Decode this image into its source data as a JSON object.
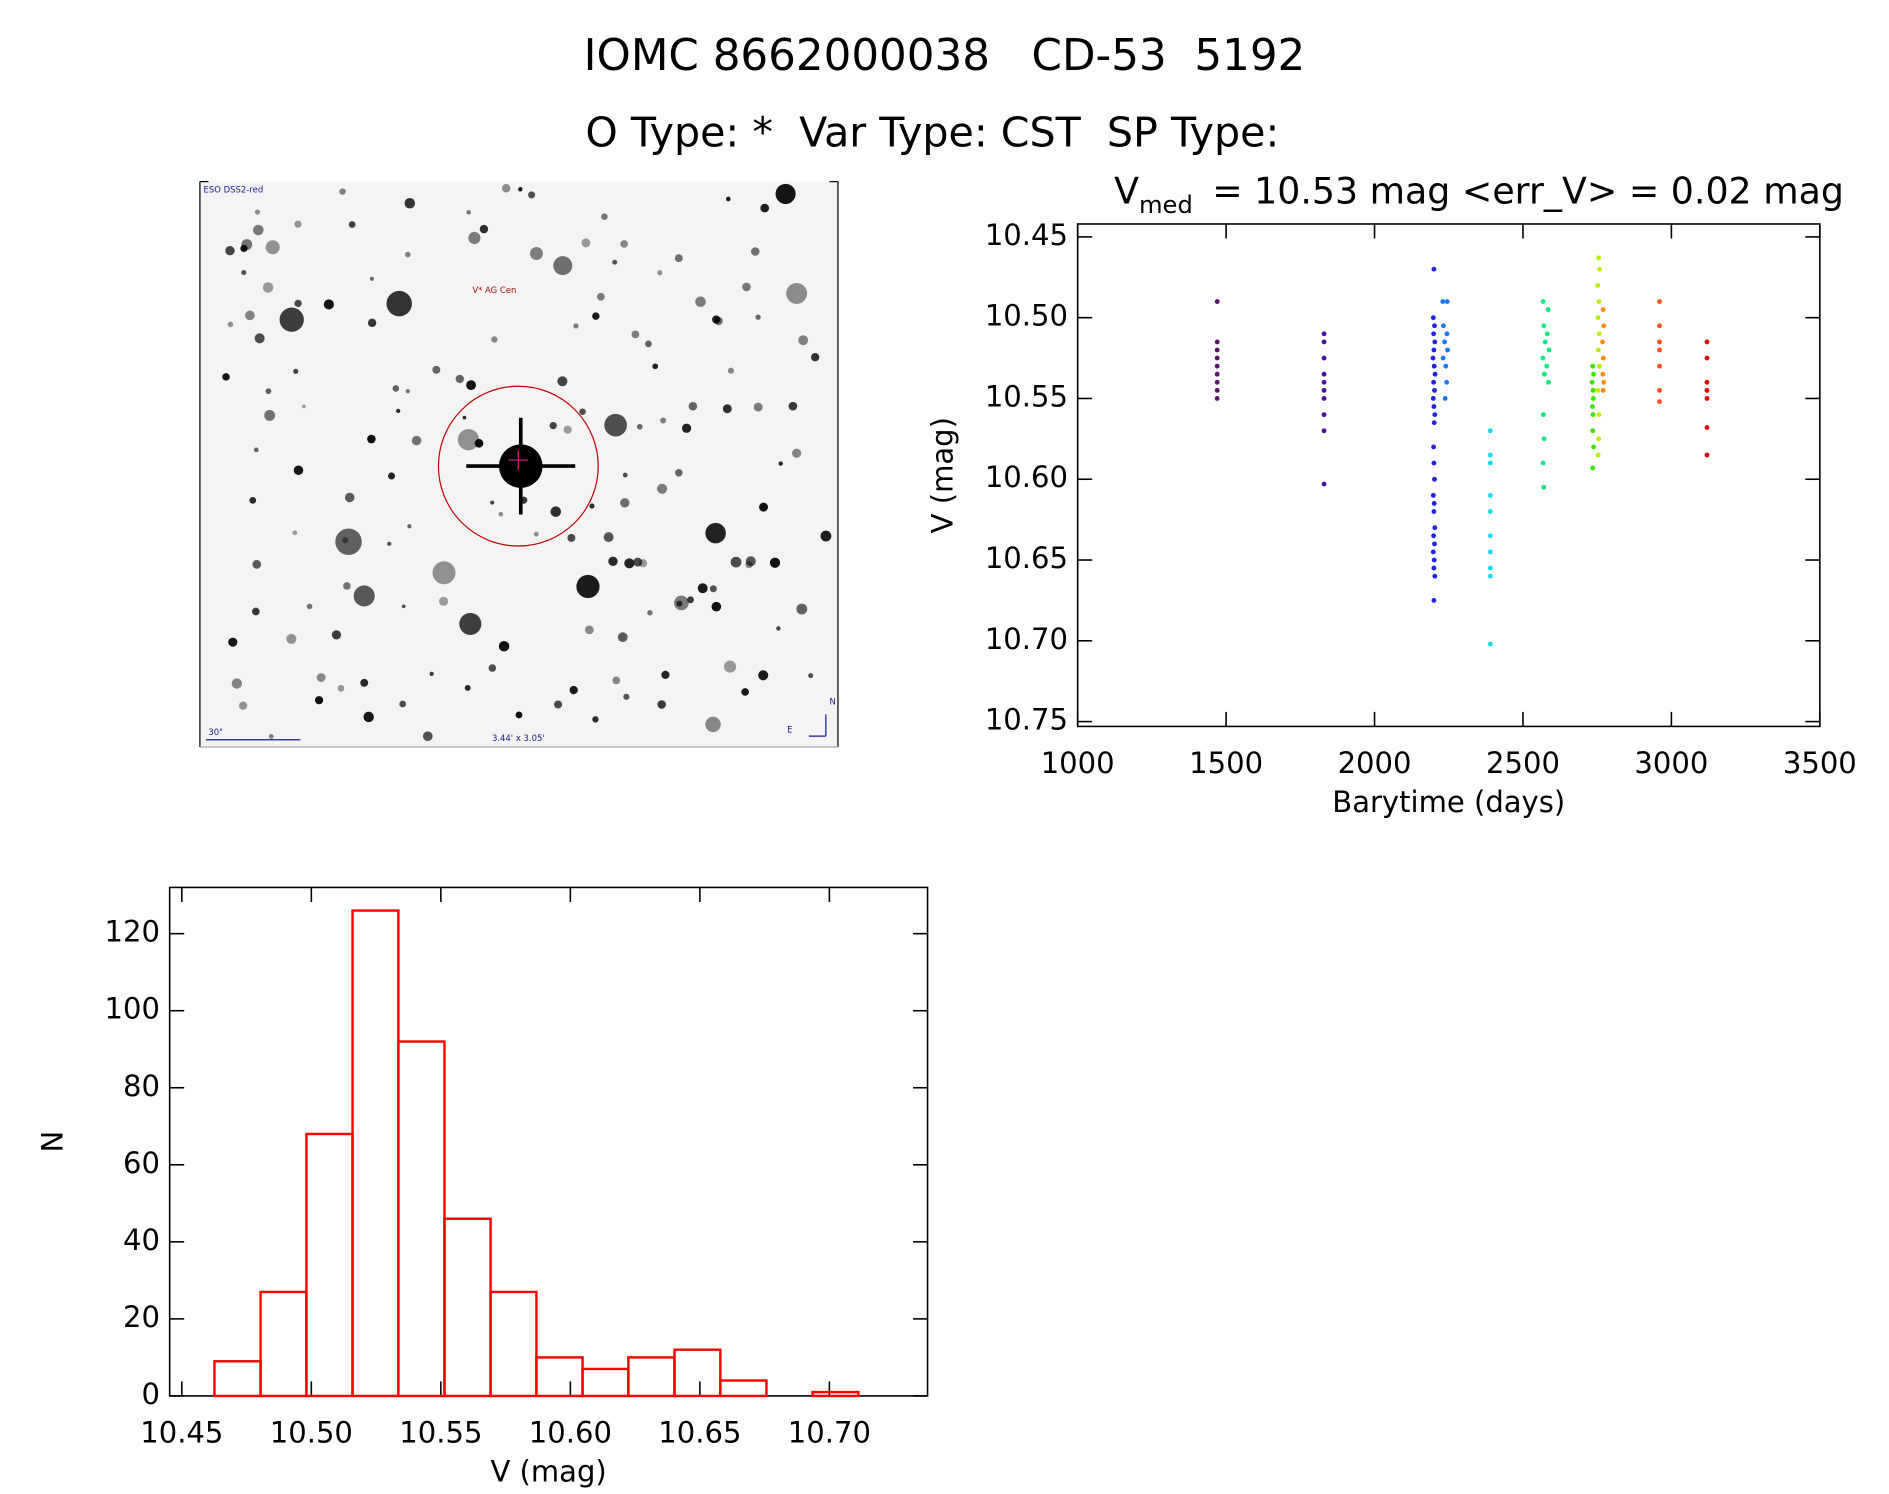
{
  "header": {
    "title": "IOMC 8662000038   CD-53  5192",
    "subtitle": "O Type: *  Var Type: CST  SP Type:"
  },
  "image": {
    "survey": "ESO DSS2-red",
    "target": "V* AG Cen",
    "scale": "30\"",
    "size": "3.44' x 3.05'",
    "north": "N",
    "east": "E"
  },
  "chart_data": [
    {
      "type": "scatter",
      "title": "V",
      "title_sub": "med",
      "title_rest": "= 10.53 mag <err_V> = 0.02 mag",
      "xlabel": "Barytime (days)",
      "ylabel": "V (mag)",
      "xlim": [
        1000,
        3500
      ],
      "ylim": [
        10.753,
        10.442
      ],
      "xticks": [
        1000,
        1500,
        2000,
        2500,
        3000,
        3500
      ],
      "yticks": [
        10.45,
        {
          "value": 10.5,
          "label": "10.50"
        },
        10.55,
        {
          "value": 10.6,
          "label": "10.60"
        },
        10.65,
        {
          "value": 10.7,
          "label": "10.70"
        },
        10.75
      ],
      "series": [
        {
          "color": "#5a106e",
          "x": [
            1470,
            1470,
            1470,
            1470,
            1470,
            1470,
            1470,
            1470,
            1470
          ],
          "values": [
            10.49,
            10.515,
            10.52,
            10.525,
            10.53,
            10.535,
            10.54,
            10.545,
            10.55
          ]
        },
        {
          "color": "#4a10a0",
          "x": [
            1830,
            1830,
            1830,
            1830,
            1830,
            1830,
            1830,
            1830,
            1830,
            1830
          ],
          "values": [
            10.51,
            10.515,
            10.525,
            10.535,
            10.54,
            10.545,
            10.55,
            10.56,
            10.57,
            10.603
          ]
        },
        {
          "color": "#2424e0",
          "x": [
            2200,
            2198,
            2202,
            2199,
            2203,
            2200,
            2197,
            2201,
            2204,
            2199,
            2202,
            2198,
            2200,
            2203,
            2201,
            2199,
            2200,
            2202,
            2198,
            2201,
            2200,
            2203,
            2199,
            2202,
            2198,
            2201,
            2200,
            2203,
            2200
          ],
          "values": [
            10.47,
            10.5,
            10.505,
            10.51,
            10.515,
            10.52,
            10.525,
            10.53,
            10.535,
            10.54,
            10.545,
            10.55,
            10.555,
            10.56,
            10.565,
            10.58,
            10.59,
            10.6,
            10.61,
            10.615,
            10.62,
            10.63,
            10.635,
            10.64,
            10.645,
            10.65,
            10.655,
            10.66,
            10.675
          ]
        },
        {
          "color": "#1e78ff",
          "x": [
            2230,
            2245,
            2232,
            2244,
            2236,
            2246,
            2231,
            2240,
            2243,
            2238
          ],
          "values": [
            10.49,
            10.49,
            10.505,
            10.51,
            10.515,
            10.52,
            10.525,
            10.53,
            10.54,
            10.55
          ]
        },
        {
          "color": "#10dcf0",
          "x": [
            2390,
            2390,
            2390,
            2390,
            2390,
            2390,
            2390,
            2390,
            2390,
            2390
          ],
          "values": [
            10.57,
            10.585,
            10.59,
            10.61,
            10.62,
            10.635,
            10.645,
            10.655,
            10.66,
            10.702
          ]
        },
        {
          "color": "#10e880",
          "x": [
            2568,
            2585,
            2570,
            2582,
            2575,
            2588,
            2567,
            2580,
            2572,
            2586,
            2569,
            2571,
            2568,
            2570
          ],
          "values": [
            10.49,
            10.495,
            10.505,
            10.51,
            10.515,
            10.52,
            10.525,
            10.53,
            10.535,
            10.54,
            10.56,
            10.575,
            10.59,
            10.605
          ]
        },
        {
          "color": "#40e000",
          "x": [
            2735,
            2738,
            2733,
            2736,
            2737,
            2734,
            2736,
            2735,
            2738,
            2735
          ],
          "values": [
            10.53,
            10.535,
            10.54,
            10.545,
            10.55,
            10.555,
            10.56,
            10.57,
            10.58,
            10.593
          ]
        },
        {
          "color": "#b8f000",
          "x": [
            2755,
            2758,
            2752,
            2756,
            2753,
            2757,
            2754,
            2758,
            2752,
            2756,
            2755,
            2753
          ],
          "values": [
            10.463,
            10.47,
            10.48,
            10.49,
            10.5,
            10.51,
            10.52,
            10.53,
            10.545,
            10.56,
            10.575,
            10.585
          ]
        },
        {
          "color": "#ff8c00",
          "x": [
            2770,
            2772,
            2768,
            2771,
            2769,
            2772,
            2770
          ],
          "values": [
            10.495,
            10.505,
            10.515,
            10.525,
            10.535,
            10.54,
            10.545
          ]
        },
        {
          "color": "#ff5020",
          "x": [
            2960,
            2960,
            2960,
            2960,
            2960,
            2960,
            2960
          ],
          "values": [
            10.49,
            10.505,
            10.515,
            10.52,
            10.53,
            10.545,
            10.552
          ]
        },
        {
          "color": "#e00000",
          "x": [
            3120,
            3120,
            3120,
            3120,
            3120,
            3120,
            3120
          ],
          "values": [
            10.515,
            10.525,
            10.54,
            10.545,
            10.55,
            10.568,
            10.585
          ]
        }
      ]
    },
    {
      "type": "histogram",
      "xlabel": "V (mag)",
      "ylabel": "N",
      "color": "#ff0000",
      "xlim": [
        10.4453,
        10.7379
      ],
      "ylim": [
        0,
        132
      ],
      "xticks": [
        10.45,
        {
          "value": 10.5,
          "label": "10.50"
        },
        10.55,
        {
          "value": 10.6,
          "label": "10.60"
        },
        10.65,
        {
          "value": 10.7,
          "label": "10.70"
        }
      ],
      "yticks": [
        0,
        20,
        40,
        60,
        80,
        100,
        120
      ],
      "bins": [
        10.4626,
        10.4804,
        10.4981,
        10.5159,
        10.5336,
        10.5514,
        10.5692,
        10.5869,
        10.6047,
        10.6224,
        10.6402,
        10.6579,
        10.6757,
        10.6935,
        10.7112
      ],
      "values": [
        9,
        27,
        68,
        126,
        92,
        46,
        27,
        10,
        7,
        10,
        12,
        4,
        0,
        1
      ]
    }
  ]
}
